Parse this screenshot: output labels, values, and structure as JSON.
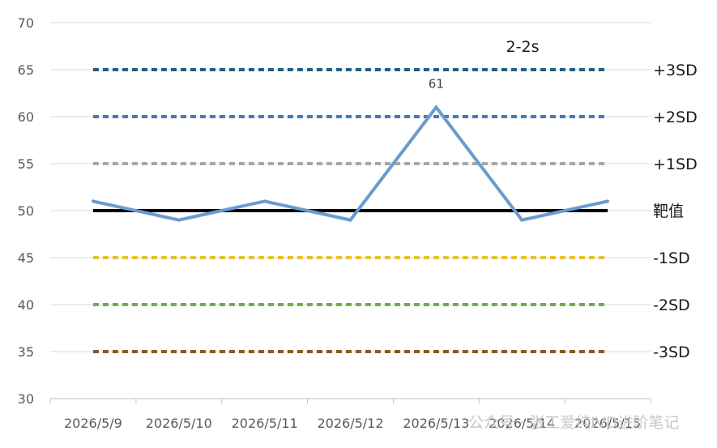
{
  "chart_data": {
    "type": "line",
    "title": "",
    "xlabel": "",
    "ylabel": "",
    "ylim": [
      30,
      70
    ],
    "yticks": [
      "30",
      "35",
      "40",
      "45",
      "50",
      "55",
      "60",
      "65",
      "70"
    ],
    "categories": [
      "2026/5/9",
      "2026/5/10",
      "2026/5/11",
      "2026/5/12",
      "2026/5/13",
      "2026/5/14",
      "2026/5/15"
    ],
    "series": [
      {
        "values": [
          51,
          49,
          51,
          49,
          61,
          49,
          51
        ],
        "color": "#6a9ccd"
      }
    ],
    "reference_lines": [
      {
        "label": "+3SD",
        "value": 65,
        "color": "#255e82",
        "style": "dashed"
      },
      {
        "label": "+2SD",
        "value": 60,
        "color": "#4a78b4",
        "style": "dashed"
      },
      {
        "label": "+1SD",
        "value": 55,
        "color": "#a6a6a6",
        "style": "dashed"
      },
      {
        "label": "靶值",
        "value": 50,
        "color": "#000000",
        "style": "solid"
      },
      {
        "label": "-1SD",
        "value": 45,
        "color": "#e8c22a",
        "style": "dashed"
      },
      {
        "label": "-2SD",
        "value": 40,
        "color": "#76a94a",
        "style": "dashed"
      },
      {
        "label": "-3SD",
        "value": 35,
        "color": "#8b5a1e",
        "style": "dashed"
      }
    ],
    "data_labels": [
      {
        "index": 4,
        "text": "61"
      }
    ],
    "annotations": [
      {
        "text": "2-2s"
      }
    ],
    "grid": true,
    "legend": "none"
  },
  "watermark": {
    "text": "公众号 · 张工爱纯IVD进阶笔记"
  }
}
